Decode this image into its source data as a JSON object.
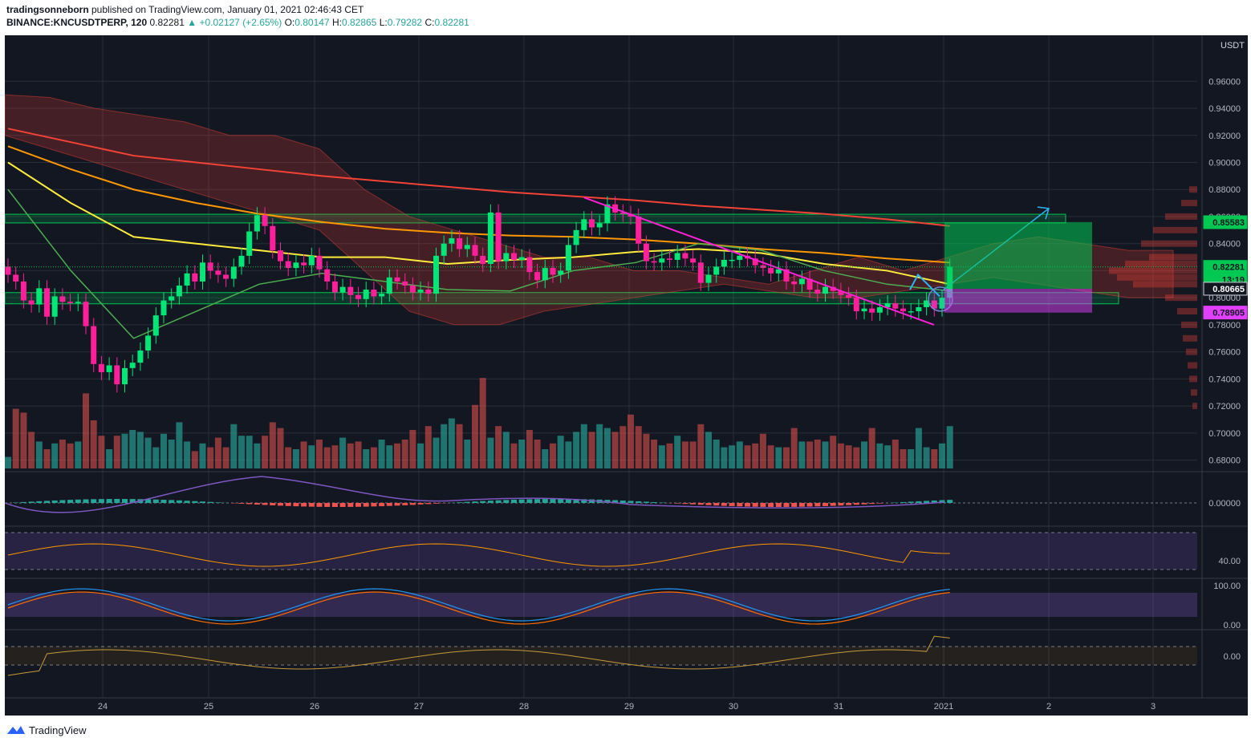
{
  "header": {
    "user": "tradingsonneborn",
    "published": " published on TradingView.com, January 01, 2021 02:46:43 CET",
    "symbol": "BINANCE:KNCUSDTPERP, 120",
    "last": "0.82281",
    "change": "+0.02127 (+2.65%)",
    "open_label": "O:",
    "open": "0.80147",
    "high_label": "H:",
    "high": "0.82865",
    "low_label": "L:",
    "low": "0.79282",
    "close_label": "C:",
    "close": "0.82281"
  },
  "footer": {
    "brand": "TradingView"
  },
  "colors": {
    "background": "#131722",
    "up": "#00e676",
    "down": "#ff1f9a",
    "ma_red": "#f44336",
    "ma_orange": "#ff9800",
    "ma_yellow": "#ffeb3b",
    "green_zone": "#00c853",
    "pink_zone": "#e040fb",
    "trendline": "#ff1fd6",
    "arrow": "#29b6f6",
    "volume_up": "#26a69a",
    "volume_down": "#ef5350"
  },
  "chart_data": {
    "type": "candlestick",
    "currency": "USDT",
    "x_ticks": [
      "24",
      "25",
      "26",
      "27",
      "28",
      "29",
      "30",
      "31",
      "2021",
      "2",
      "3"
    ],
    "y_ticks": [
      "0.96000",
      "0.94000",
      "0.92000",
      "0.90000",
      "0.88000",
      "0.86000",
      "0.84000",
      "0.82000",
      "0.80000",
      "0.78000",
      "0.76000",
      "0.74000",
      "0.72000",
      "0.70000",
      "0.68000"
    ],
    "ylim": [
      0.675,
      0.975
    ],
    "price_labels": [
      {
        "text": "0.85583",
        "value": 0.85583,
        "color": "#00c853"
      },
      {
        "text": "0.82281",
        "value": 0.82281,
        "color": "#00c853"
      },
      {
        "text": "13:19",
        "value": 0.8135,
        "color": "#00c853"
      },
      {
        "text": "0.80665",
        "value": 0.80665,
        "color": "#131722"
      },
      {
        "text": "0.78905",
        "value": 0.78905,
        "color": "#e040fb"
      }
    ],
    "closes": [
      0.817,
      0.812,
      0.798,
      0.795,
      0.807,
      0.786,
      0.801,
      0.797,
      0.796,
      0.797,
      0.779,
      0.751,
      0.745,
      0.75,
      0.736,
      0.748,
      0.752,
      0.761,
      0.772,
      0.787,
      0.798,
      0.801,
      0.809,
      0.818,
      0.812,
      0.826,
      0.82,
      0.817,
      0.814,
      0.823,
      0.831,
      0.849,
      0.861,
      0.853,
      0.835,
      0.827,
      0.822,
      0.826,
      0.824,
      0.831,
      0.821,
      0.812,
      0.804,
      0.808,
      0.802,
      0.799,
      0.806,
      0.801,
      0.803,
      0.815,
      0.812,
      0.809,
      0.804,
      0.806,
      0.803,
      0.831,
      0.84,
      0.844,
      0.836,
      0.839,
      0.831,
      0.825,
      0.863,
      0.827,
      0.833,
      0.828,
      0.83,
      0.819,
      0.813,
      0.822,
      0.817,
      0.82,
      0.839,
      0.85,
      0.858,
      0.852,
      0.855,
      0.869,
      0.863,
      0.862,
      0.86,
      0.84,
      0.827,
      0.826,
      0.829,
      0.828,
      0.833,
      0.829,
      0.826,
      0.811,
      0.817,
      0.823,
      0.828,
      0.828,
      0.831,
      0.829,
      0.824,
      0.822,
      0.818,
      0.821,
      0.812,
      0.81,
      0.814,
      0.806,
      0.803,
      0.808,
      0.805,
      0.802,
      0.8,
      0.79,
      0.792,
      0.789,
      0.793,
      0.796,
      0.792,
      0.79,
      0.79,
      0.793,
      0.798,
      0.792,
      0.8,
      0.823
    ],
    "volumes": [
      0.12,
      0.62,
      0.58,
      0.38,
      0.28,
      0.2,
      0.26,
      0.3,
      0.26,
      0.28,
      0.78,
      0.5,
      0.34,
      0.2,
      0.34,
      0.36,
      0.4,
      0.38,
      0.32,
      0.22,
      0.36,
      0.3,
      0.48,
      0.28,
      0.18,
      0.26,
      0.22,
      0.32,
      0.22,
      0.46,
      0.34,
      0.34,
      0.26,
      0.34,
      0.48,
      0.42,
      0.22,
      0.2,
      0.28,
      0.24,
      0.3,
      0.22,
      0.24,
      0.32,
      0.26,
      0.28,
      0.2,
      0.22,
      0.3,
      0.24,
      0.26,
      0.3,
      0.4,
      0.26,
      0.44,
      0.32,
      0.46,
      0.52,
      0.46,
      0.3,
      0.66,
      0.94,
      0.32,
      0.44,
      0.38,
      0.26,
      0.3,
      0.4,
      0.3,
      0.2,
      0.26,
      0.34,
      0.28,
      0.38,
      0.46,
      0.38,
      0.46,
      0.42,
      0.38,
      0.44,
      0.56,
      0.44,
      0.36,
      0.3,
      0.24,
      0.26,
      0.34,
      0.28,
      0.28,
      0.46,
      0.38,
      0.3,
      0.22,
      0.24,
      0.28,
      0.24,
      0.26,
      0.36,
      0.24,
      0.22,
      0.22,
      0.42,
      0.28,
      0.28,
      0.3,
      0.28,
      0.34,
      0.26,
      0.24,
      0.22,
      0.28,
      0.42,
      0.26,
      0.24,
      0.3,
      0.2,
      0.2,
      0.42,
      0.22,
      0.2,
      0.26,
      0.44
    ],
    "panels": [
      {
        "name": "macd",
        "labels": [
          "0.00000"
        ]
      },
      {
        "name": "rsi",
        "labels": [
          "40.00"
        ]
      },
      {
        "name": "stoch",
        "labels": [
          "100.00",
          "0.00"
        ]
      },
      {
        "name": "momentum",
        "labels": [
          "0.00"
        ]
      }
    ]
  }
}
